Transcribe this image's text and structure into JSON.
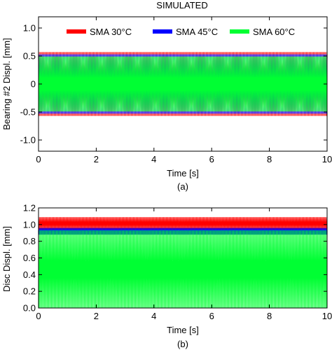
{
  "figure": {
    "title": "SIMULATED"
  },
  "chart_data": [
    {
      "type": "line",
      "caption": "(a)",
      "xlabel": "Time [s]",
      "ylabel": "Bearing #2 Displ. [mm]",
      "xlim": [
        0,
        10
      ],
      "ylim": [
        -1.2,
        1.2
      ],
      "x_ticks": [
        "0",
        "2",
        "4",
        "6",
        "8",
        "10"
      ],
      "y_ticks": [
        "-1.0",
        "-0.5",
        "0",
        "0.5",
        "1.0"
      ],
      "grid": false,
      "legend_placement": "top",
      "series": [
        {
          "name": "SMA 30°C",
          "color": "#ff0000",
          "oscillation": "symmetric",
          "amplitude": 0.57
        },
        {
          "name": "SMA 45°C",
          "color": "#0000ff",
          "oscillation": "symmetric",
          "amplitude": 0.53
        },
        {
          "name": "SMA 60°C",
          "color": "#00ff33",
          "oscillation": "symmetric",
          "amplitude": 0.49
        }
      ]
    },
    {
      "type": "line",
      "caption": "(b)",
      "xlabel": "Time [s]",
      "ylabel": "Disc Displ. [mm]",
      "xlim": [
        0,
        10
      ],
      "ylim": [
        0,
        1.2
      ],
      "x_ticks": [
        "0",
        "2",
        "4",
        "6",
        "8",
        "10"
      ],
      "y_ticks": [
        "0.0",
        "0.2",
        "0.4",
        "0.6",
        "0.8",
        "1.0",
        "1.2"
      ],
      "grid": false,
      "series": [
        {
          "name": "SMA 30°C",
          "color": "#ff0000",
          "oscillation": "band",
          "range": [
            0.94,
            1.09
          ]
        },
        {
          "name": "SMA 45°C",
          "color": "#0000ff",
          "oscillation": "band",
          "range": [
            0.88,
            0.96
          ]
        },
        {
          "name": "SMA 60°C",
          "color": "#00ff33",
          "oscillation": "band",
          "range": [
            0.0,
            0.93
          ]
        }
      ]
    }
  ]
}
